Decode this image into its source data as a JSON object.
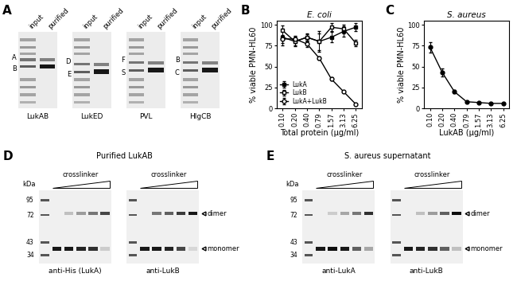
{
  "panel_labels": [
    "A",
    "B",
    "C",
    "D",
    "E"
  ],
  "chart_data": [
    {
      "type": "line",
      "title": "E. coli",
      "x_label": "Total protein (µg/ml)",
      "y_label": "% viable PMN-HL60",
      "categories": [
        "0.10",
        "0.20",
        "0.40",
        "0.79",
        "1.57",
        "3.13",
        "6.25"
      ],
      "ylim": [
        0,
        105
      ],
      "yticks": [
        0,
        25,
        50,
        75,
        100
      ],
      "legend": "lower left",
      "series": [
        {
          "name": "LukA",
          "color": "#000000",
          "marker": "filled_square",
          "values": [
            85,
            80,
            85,
            80,
            85,
            92,
            97
          ],
          "errors": [
            10,
            6,
            5,
            12,
            6,
            6,
            5
          ]
        },
        {
          "name": "LukB",
          "color": "#000000",
          "marker": "open_square",
          "values": [
            93,
            80,
            85,
            80,
            97,
            95,
            78
          ],
          "errors": [
            6,
            5,
            4,
            10,
            5,
            5,
            4
          ]
        },
        {
          "name": "LukA+LukB",
          "color": "#000000",
          "marker": "open_circle",
          "values": [
            83,
            83,
            77,
            60,
            35,
            20,
            5
          ],
          "errors": [
            5,
            4,
            4,
            2,
            2,
            1,
            1
          ]
        }
      ]
    },
    {
      "type": "line",
      "title": "S. aureus",
      "x_label": "LukAB (µg/ml)",
      "y_label": "% viable PMN-HL60",
      "categories": [
        "0.10",
        "0.20",
        "0.40",
        "0.79",
        "1.57",
        "3.13",
        "6.25"
      ],
      "ylim": [
        0,
        105
      ],
      "yticks": [
        0,
        25,
        50,
        75,
        100
      ],
      "series": [
        {
          "color": "#000000",
          "marker": "filled_circle",
          "values": [
            73,
            43,
            20,
            8,
            7,
            6,
            6
          ],
          "errors": [
            6,
            5,
            2,
            1,
            1,
            1,
            1
          ]
        }
      ]
    }
  ],
  "gels": {
    "A": {
      "lanes": [
        "input",
        "purified"
      ],
      "gels": [
        {
          "name": "LukAB",
          "bands": [
            "A",
            "B"
          ]
        },
        {
          "name": "LukED",
          "bands": [
            "D",
            "E"
          ]
        },
        {
          "name": "PVL",
          "bands": [
            "F",
            "S"
          ]
        },
        {
          "name": "HlgCB",
          "bands": [
            "B",
            "C"
          ]
        }
      ]
    },
    "D": {
      "title": "Purified LukAB",
      "treatment": "crosslinker",
      "unit": "kDa",
      "ladder": [
        95,
        72,
        43,
        34
      ],
      "blots": [
        "anti-His (LukA)",
        "anti-LukB"
      ],
      "bands": [
        "dimer",
        "monomer"
      ]
    },
    "E": {
      "title": "S. aureus supernatant",
      "treatment": "crosslinker",
      "unit": "kDa",
      "ladder": [
        95,
        72,
        43,
        34
      ],
      "blots": [
        "anti-LukA",
        "anti-LukB"
      ],
      "bands": [
        "dimer",
        "monomer"
      ]
    }
  }
}
